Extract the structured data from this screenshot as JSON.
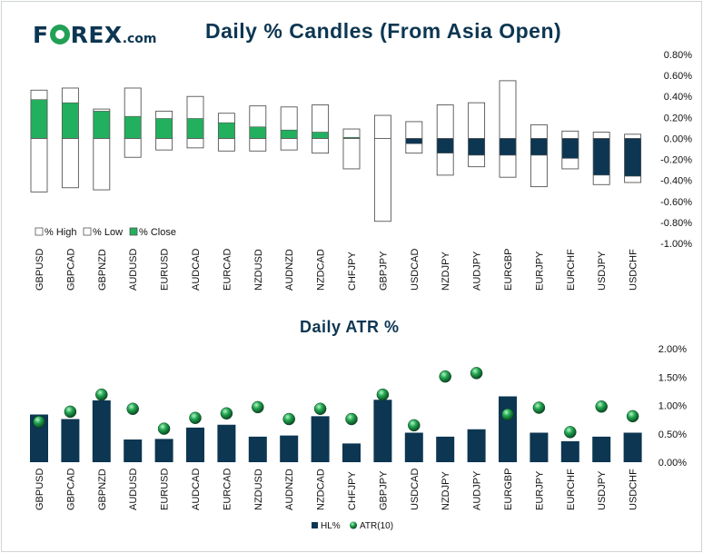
{
  "brand": {
    "logo_left": "F",
    "logo_right": "REX",
    "logo_suffix": ".com"
  },
  "colors": {
    "navy": "#0c3652",
    "green": "#22b05e",
    "border": "#555555"
  },
  "candles_chart": {
    "title": "Daily % Candles (From Asia Open)",
    "y_ticks": [
      "0.80%",
      "0.60%",
      "0.40%",
      "0.20%",
      "0.00%",
      "-0.20%",
      "-0.40%",
      "-0.60%",
      "-0.80%",
      "-1.00%"
    ],
    "legend": [
      "% High",
      "% Low",
      "% Close"
    ]
  },
  "atr_chart": {
    "title": "Daily ATR %",
    "y_ticks": [
      "2.00%",
      "1.50%",
      "1.00%",
      "0.50%",
      "0.00%"
    ],
    "legend": [
      "HL%",
      "ATR(10)"
    ]
  },
  "chart_data": [
    {
      "type": "bar",
      "title": "Daily % Candles (From Asia Open)",
      "categories": [
        "GBPUSD",
        "GBPCAD",
        "GBPNZD",
        "AUDUSD",
        "EURUSD",
        "AUDCAD",
        "EURCAD",
        "NZDUSD",
        "AUDNZD",
        "NZDCAD",
        "CHFJPY",
        "GBPJPY",
        "USDCAD",
        "NZDJPY",
        "AUDJPY",
        "EURGBP",
        "EURJPY",
        "EURCHF",
        "USDJPY",
        "USDCHF"
      ],
      "series": [
        {
          "name": "% High",
          "values": [
            0.46,
            0.48,
            0.28,
            0.48,
            0.26,
            0.4,
            0.24,
            0.31,
            0.3,
            0.32,
            0.09,
            0.22,
            0.16,
            0.32,
            0.34,
            0.55,
            0.13,
            0.07,
            0.06,
            0.04
          ]
        },
        {
          "name": "% Low",
          "values": [
            -0.51,
            -0.47,
            -0.49,
            -0.18,
            -0.11,
            -0.09,
            -0.12,
            -0.12,
            -0.11,
            -0.14,
            -0.29,
            -0.79,
            -0.14,
            -0.35,
            -0.27,
            -0.37,
            -0.46,
            -0.29,
            -0.44,
            -0.42
          ]
        },
        {
          "name": "% Close",
          "values": [
            0.37,
            0.34,
            0.26,
            0.21,
            0.19,
            0.19,
            0.15,
            0.11,
            0.08,
            0.06,
            0.01,
            0.0,
            -0.05,
            -0.14,
            -0.16,
            -0.16,
            -0.16,
            -0.19,
            -0.35,
            -0.36
          ]
        }
      ],
      "ylim": [
        -1.0,
        0.8
      ]
    },
    {
      "type": "bar",
      "title": "Daily ATR %",
      "categories": [
        "GBPUSD",
        "GBPCAD",
        "GBPNZD",
        "AUDUSD",
        "EURUSD",
        "AUDCAD",
        "EURCAD",
        "NZDUSD",
        "AUDNZD",
        "NZDCAD",
        "CHFJPY",
        "GBPJPY",
        "USDCAD",
        "NZDJPY",
        "AUDJPY",
        "EURGBP",
        "EURJPY",
        "EURCHF",
        "USDJPY",
        "USDCHF"
      ],
      "series": [
        {
          "name": "HL%",
          "values": [
            0.84,
            0.76,
            1.09,
            0.4,
            0.41,
            0.61,
            0.66,
            0.45,
            0.47,
            0.81,
            0.33,
            1.1,
            0.52,
            0.45,
            0.58,
            1.16,
            0.52,
            0.37,
            0.45,
            0.52
          ]
        },
        {
          "name": "ATR(10)",
          "values": [
            0.71,
            0.89,
            1.19,
            0.94,
            0.59,
            0.78,
            0.86,
            0.97,
            0.76,
            0.94,
            0.76,
            1.19,
            0.65,
            1.51,
            1.57,
            0.84,
            0.96,
            0.53,
            0.98,
            0.81
          ]
        }
      ],
      "ylim": [
        0,
        2.0
      ]
    }
  ]
}
